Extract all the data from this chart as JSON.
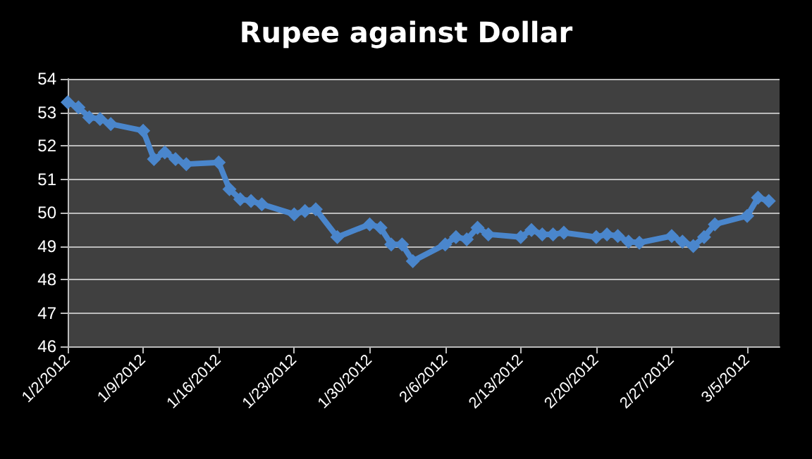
{
  "chart_data": {
    "type": "line",
    "title": "Rupee against Dollar",
    "x": [
      "2012-01-02",
      "2012-01-03",
      "2012-01-04",
      "2012-01-05",
      "2012-01-06",
      "2012-01-09",
      "2012-01-10",
      "2012-01-11",
      "2012-01-12",
      "2012-01-13",
      "2012-01-16",
      "2012-01-17",
      "2012-01-18",
      "2012-01-19",
      "2012-01-20",
      "2012-01-23",
      "2012-01-24",
      "2012-01-25",
      "2012-01-27",
      "2012-01-30",
      "2012-01-31",
      "2012-02-01",
      "2012-02-02",
      "2012-02-03",
      "2012-02-06",
      "2012-02-07",
      "2012-02-08",
      "2012-02-09",
      "2012-02-10",
      "2012-02-13",
      "2012-02-14",
      "2012-02-15",
      "2012-02-16",
      "2012-02-17",
      "2012-02-20",
      "2012-02-21",
      "2012-02-22",
      "2012-02-23",
      "2012-02-24",
      "2012-02-27",
      "2012-02-28",
      "2012-02-29",
      "2012-03-01",
      "2012-03-02",
      "2012-03-05",
      "2012-03-06",
      "2012-03-07"
    ],
    "series": [
      {
        "color": "#4a86cc",
        "values": [
          53.3,
          53.15,
          52.85,
          52.8,
          52.65,
          52.45,
          51.6,
          51.8,
          51.6,
          51.45,
          51.5,
          50.7,
          50.4,
          50.35,
          50.25,
          49.95,
          50.05,
          50.1,
          49.27,
          49.65,
          49.55,
          49.05,
          49.05,
          48.55,
          49.05,
          49.27,
          49.2,
          49.55,
          49.35,
          49.27,
          49.48,
          49.35,
          49.35,
          49.4,
          49.27,
          49.35,
          49.3,
          49.13,
          49.1,
          49.3,
          49.13,
          49.0,
          49.27,
          49.65,
          49.9,
          50.45,
          50.35
        ]
      }
    ],
    "xlim": [
      "2012-01-02",
      "2012-03-08"
    ],
    "xticks": [
      {
        "value": "2012-01-02",
        "label": "1/2/2012"
      },
      {
        "value": "2012-01-09",
        "label": "1/9/2012"
      },
      {
        "value": "2012-01-16",
        "label": "1/16/2012"
      },
      {
        "value": "2012-01-23",
        "label": "1/23/2012"
      },
      {
        "value": "2012-01-30",
        "label": "1/30/2012"
      },
      {
        "value": "2012-02-06",
        "label": "2/6/2012"
      },
      {
        "value": "2012-02-13",
        "label": "2/13/2012"
      },
      {
        "value": "2012-02-20",
        "label": "2/20/2012"
      },
      {
        "value": "2012-02-27",
        "label": "2/27/2012"
      },
      {
        "value": "2012-03-05",
        "label": "3/5/2012"
      }
    ],
    "ylim": [
      46,
      54
    ],
    "yticks": [
      46,
      47,
      48,
      49,
      50,
      51,
      52,
      53,
      54
    ],
    "grid": "y",
    "marker": "diamond",
    "line_style": "solid"
  }
}
